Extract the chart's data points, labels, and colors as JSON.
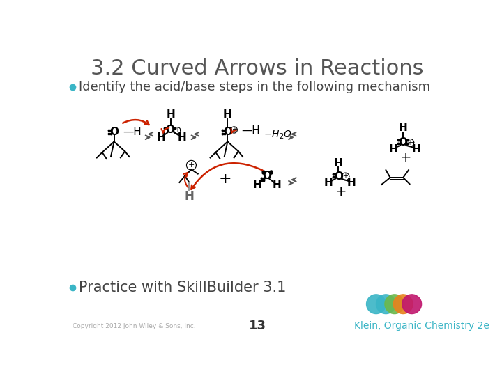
{
  "title": "3.2 Curved Arrows in Reactions",
  "bullet1": "Identify the acid/base steps in the following mechanism",
  "bullet2": "Practice with SkillBuilder 3.1",
  "footer_left": "Copyright 2012 John Wiley & Sons, Inc.",
  "footer_center": "13",
  "footer_right": "Klein, Organic Chemistry 2e",
  "title_color": "#555555",
  "title_fontsize": 22,
  "bullet_color": "#444444",
  "bullet_fontsize": 13,
  "bullet2_fontsize": 15,
  "teal_bullet": "#3ab5c6",
  "footer_right_color": "#3ab5c6",
  "background_color": "#ffffff",
  "red": "#cc2200",
  "circle_colors": [
    "#3ab5c6",
    "#4caf78",
    "#7cba47",
    "#e8821e",
    "#c0176e"
  ],
  "gray": "#888888"
}
